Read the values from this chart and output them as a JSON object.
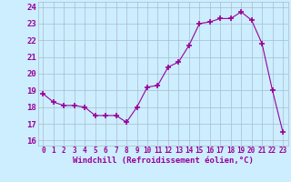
{
  "x": [
    0,
    1,
    2,
    3,
    4,
    5,
    6,
    7,
    8,
    9,
    10,
    11,
    12,
    13,
    14,
    15,
    16,
    17,
    18,
    19,
    20,
    21,
    22,
    23
  ],
  "y": [
    18.8,
    18.3,
    18.1,
    18.1,
    18.0,
    17.5,
    17.5,
    17.5,
    17.1,
    18.0,
    19.2,
    19.3,
    20.4,
    20.7,
    21.7,
    23.0,
    23.1,
    23.3,
    23.3,
    23.7,
    23.2,
    21.8,
    19.0,
    16.5
  ],
  "line_color": "#990099",
  "marker": "+",
  "marker_size": 4,
  "bg_color": "#cceeff",
  "grid_color": "#aabbcc",
  "xlabel": "Windchill (Refroidissement éolien,°C)",
  "ylabel_ticks": [
    16,
    17,
    18,
    19,
    20,
    21,
    22,
    23,
    24
  ],
  "xlim": [
    -0.5,
    23.5
  ],
  "ylim": [
    15.7,
    24.3
  ],
  "label_color": "#990099",
  "tick_color": "#990099",
  "xlabel_fontsize": 6.5,
  "ytick_fontsize": 6.5,
  "xtick_fontsize": 5.5
}
